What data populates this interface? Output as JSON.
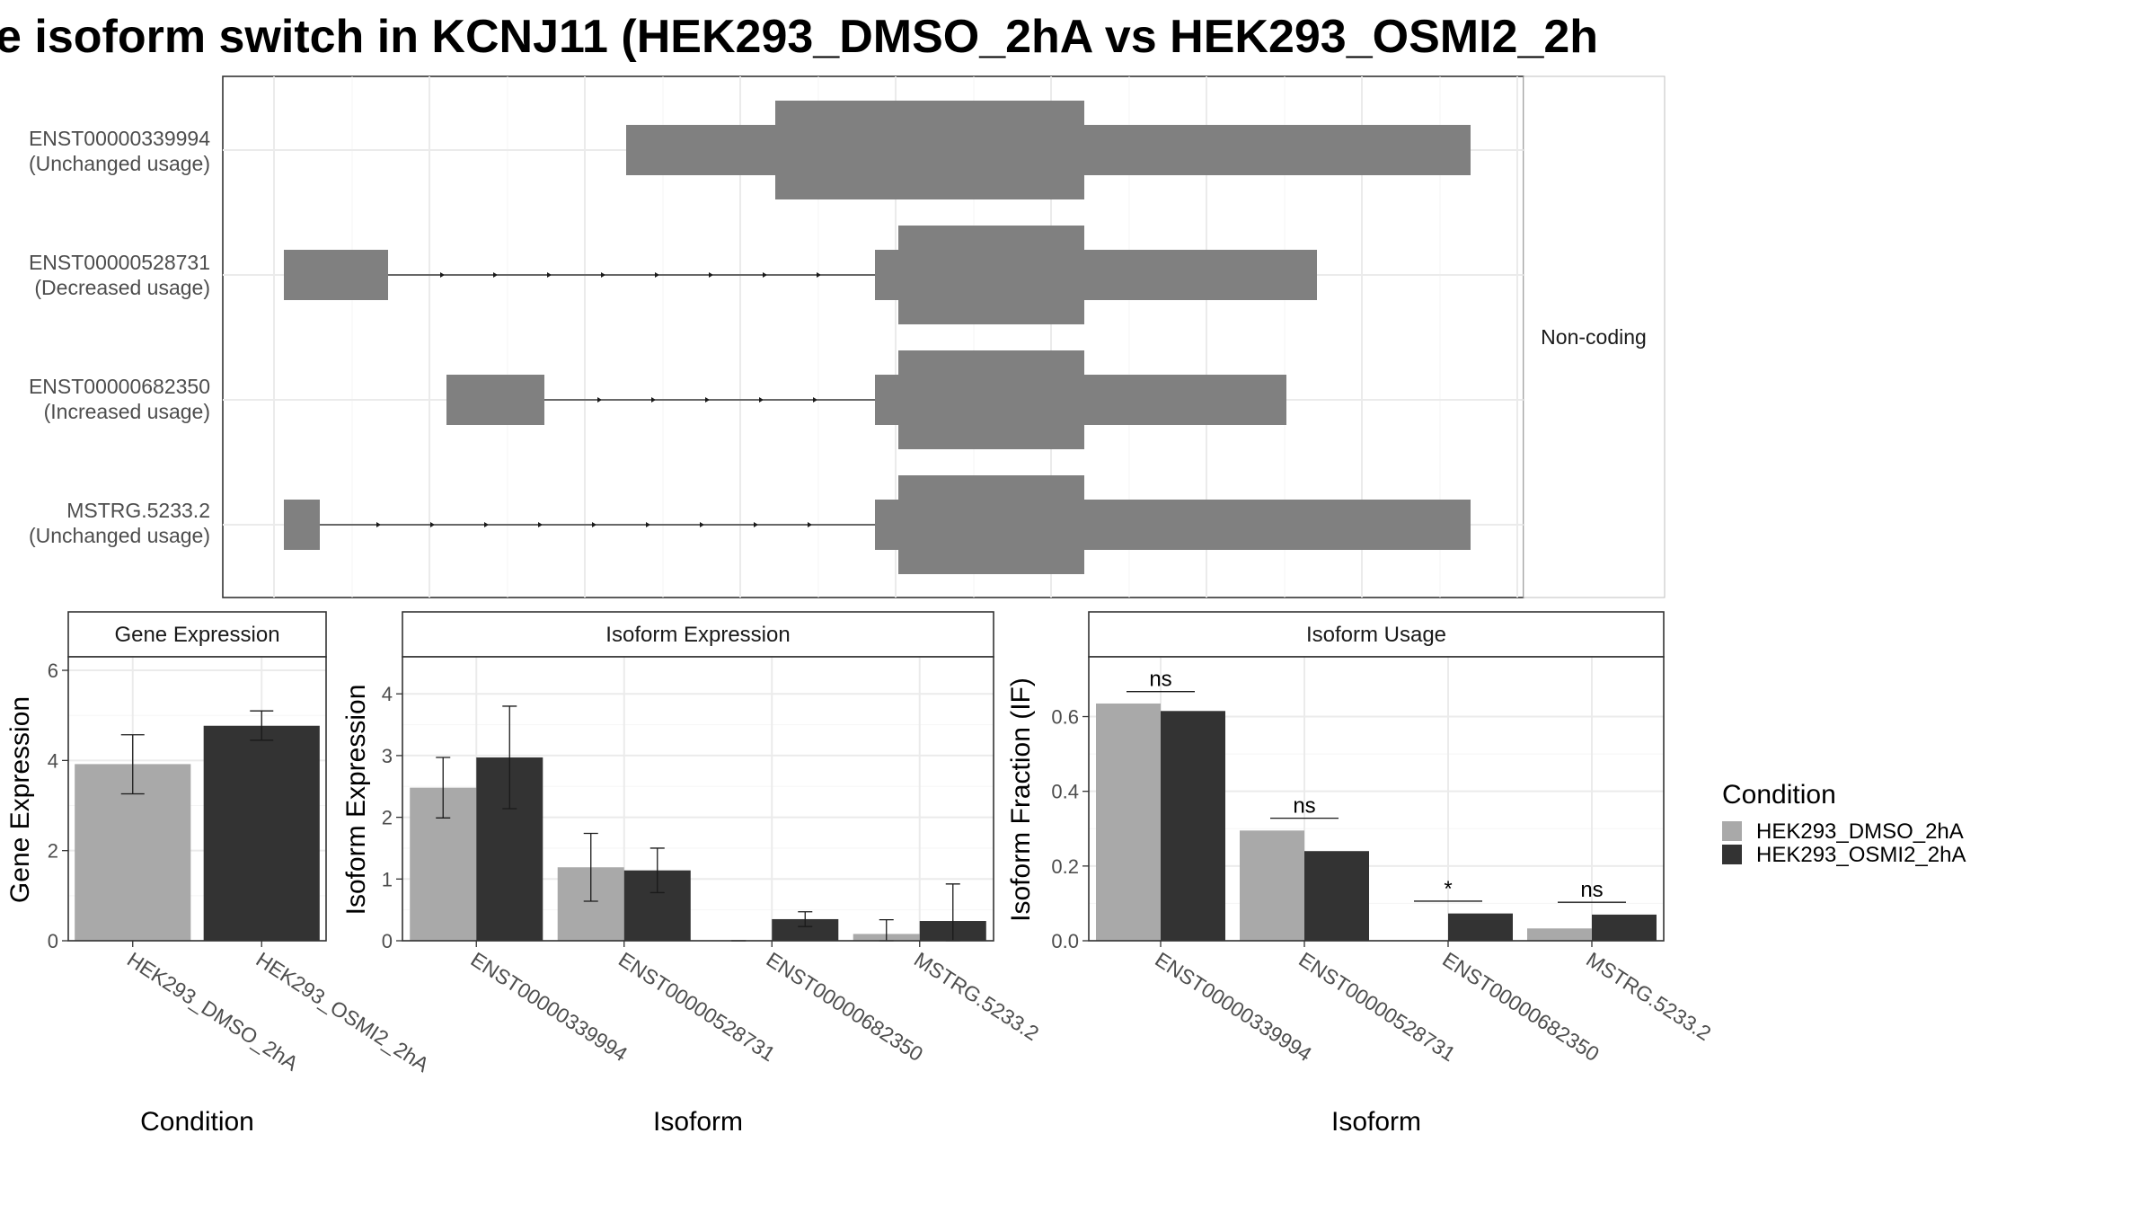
{
  "title": "e isoform switch in KCNJ11 (HEK293_DMSO_2hA vs HEK293_OSMI2_2h",
  "colors": {
    "dmso": "#a9a9a9",
    "osmi2": "#333333",
    "transcript": "#808080",
    "grid": "#ebebeb",
    "frame": "#333333"
  },
  "chart_data": [
    {
      "type": "transcript-structure",
      "facet_label": "Non-coding",
      "tracks": [
        {
          "id": "ENST00000339994",
          "status": "(Unchanged usage)"
        },
        {
          "id": "ENST00000528731",
          "status": "(Decreased usage)"
        },
        {
          "id": "ENST00000682350",
          "status": "(Increased usage)"
        },
        {
          "id": "MSTRG.5233.2",
          "status": "(Unchanged usage)"
        }
      ]
    },
    {
      "type": "bar",
      "title": "Gene Expression",
      "xlabel": "Condition",
      "ylabel": "Gene Expression",
      "ylim": [
        0,
        6.3
      ],
      "yticks": [
        "0",
        "2",
        "4",
        "6"
      ],
      "categories": [
        "HEK293_DMSO_2hA",
        "HEK293_OSMI2_2hA"
      ],
      "values": [
        3.92,
        4.77
      ],
      "err_low": [
        3.26,
        4.45
      ],
      "err_high": [
        4.57,
        5.1
      ]
    },
    {
      "type": "bar",
      "title": "Isoform Expression",
      "xlabel": "Isoform",
      "ylabel": "Isoform Expression",
      "ylim": [
        0,
        4.6
      ],
      "yticks": [
        "0",
        "1",
        "2",
        "3",
        "4"
      ],
      "categories": [
        "ENST00000339994",
        "ENST00000528731",
        "ENST00000682350",
        "MSTRG.5233.2"
      ],
      "series": [
        {
          "name": "HEK293_DMSO_2hA",
          "values": [
            2.48,
            1.19,
            0.0,
            0.11
          ],
          "err_low": [
            1.99,
            0.64,
            0.0,
            0.0
          ],
          "err_high": [
            2.97,
            1.74,
            0.0,
            0.34
          ]
        },
        {
          "name": "HEK293_OSMI2_2hA",
          "values": [
            2.97,
            1.14,
            0.35,
            0.32
          ],
          "err_low": [
            2.14,
            0.78,
            0.23,
            0.0
          ],
          "err_high": [
            3.8,
            1.5,
            0.47,
            0.92
          ]
        }
      ]
    },
    {
      "type": "bar",
      "title": "Isoform Usage",
      "xlabel": "Isoform",
      "ylabel": "Isoform Fraction (IF)",
      "ylim": [
        0,
        0.76
      ],
      "yticks": [
        "0.0",
        "0.2",
        "0.4",
        "0.6"
      ],
      "categories": [
        "ENST00000339994",
        "ENST00000528731",
        "ENST00000682350",
        "MSTRG.5233.2"
      ],
      "series": [
        {
          "name": "HEK293_DMSO_2hA",
          "values": [
            0.635,
            0.295,
            0.0,
            0.033
          ]
        },
        {
          "name": "HEK293_OSMI2_2hA",
          "values": [
            0.615,
            0.24,
            0.073,
            0.07
          ]
        }
      ],
      "significance": [
        "ns",
        "ns",
        "*",
        "ns"
      ],
      "significance_y": [
        0.667,
        0.328,
        0.106,
        0.103
      ]
    }
  ],
  "legend": {
    "title": "Condition",
    "items": [
      "HEK293_DMSO_2hA",
      "HEK293_OSMI2_2hA"
    ]
  }
}
